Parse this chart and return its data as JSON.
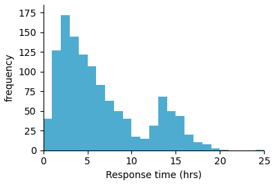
{
  "bar_heights": [
    40,
    127,
    172,
    145,
    122,
    107,
    83,
    63,
    50,
    40,
    17,
    15,
    31,
    68,
    50,
    44,
    20,
    10,
    8,
    2,
    1,
    0,
    0,
    0,
    1
  ],
  "bin_width": 1,
  "x_start": 0,
  "bar_color": "#4eacd1",
  "bar_edgecolor": "#4eacd1",
  "xlabel": "Response time (hrs)",
  "ylabel": "frequency",
  "xlim": [
    0,
    25
  ],
  "ylim": [
    0,
    185
  ],
  "xticks": [
    0,
    5,
    10,
    15,
    20,
    25
  ],
  "yticks": [
    0,
    25,
    50,
    75,
    100,
    125,
    150,
    175
  ],
  "figsize": [
    3.98,
    2.68
  ],
  "dpi": 100
}
